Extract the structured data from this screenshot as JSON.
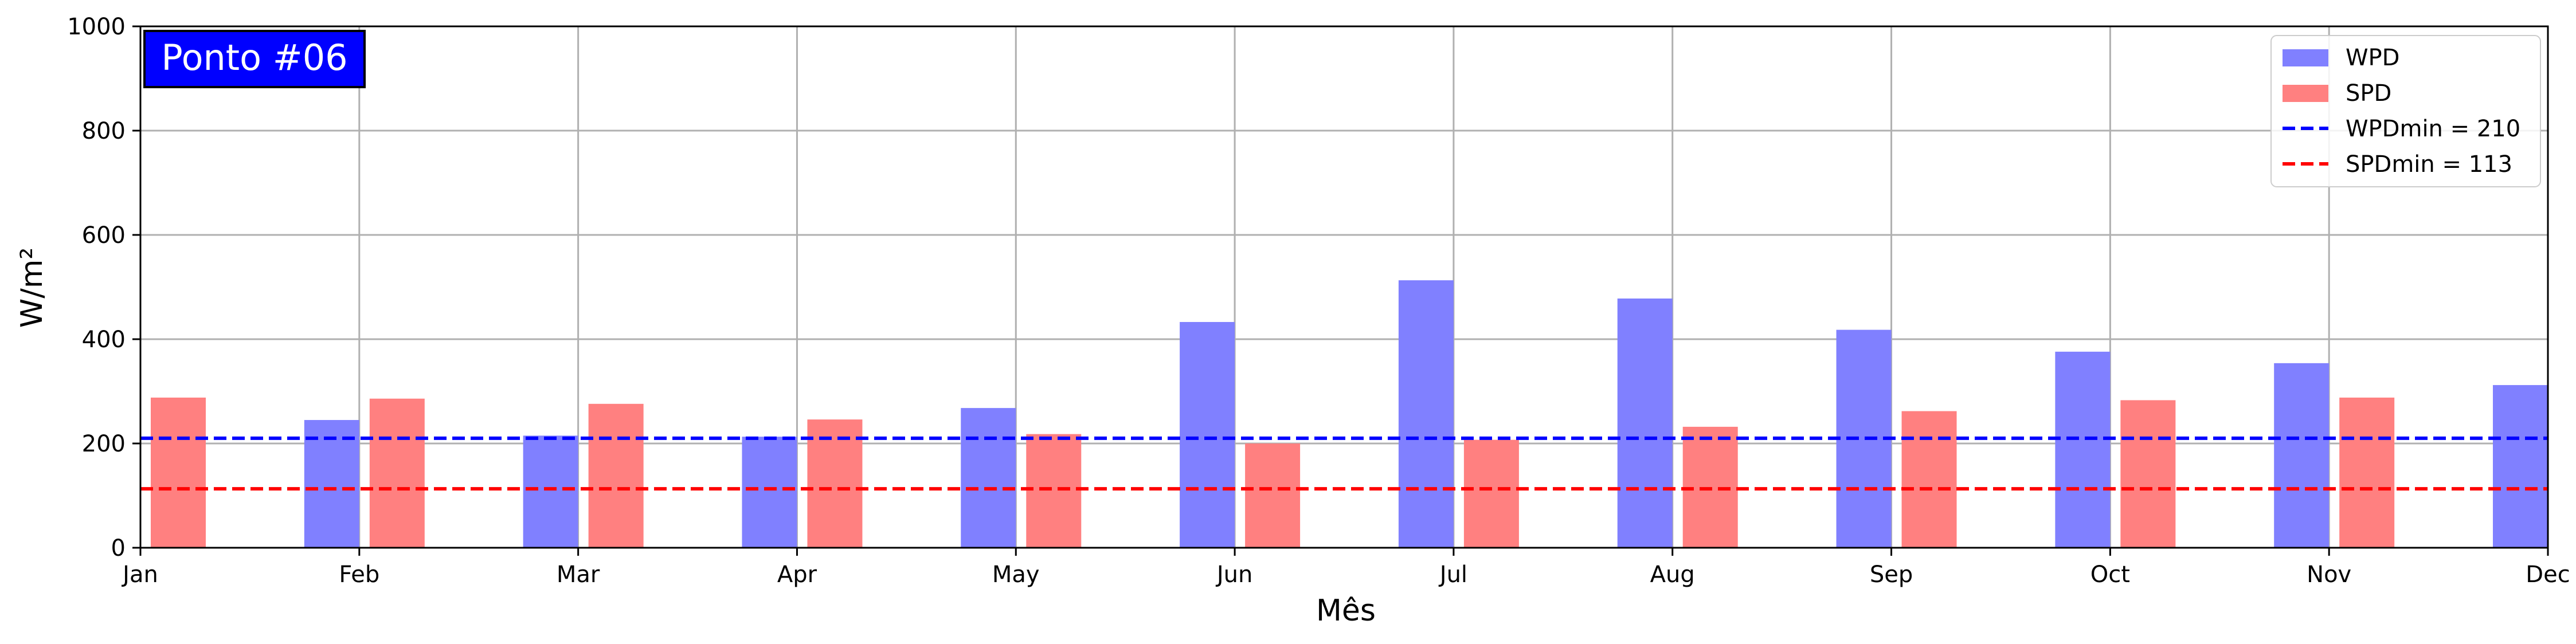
{
  "chart_data": {
    "type": "bar",
    "title_box": "Ponto #06",
    "xlabel": "Mês",
    "ylabel": "W/m²",
    "ylim": [
      0,
      1000
    ],
    "yticks": [
      0,
      200,
      400,
      600,
      800,
      1000
    ],
    "grid": true,
    "legend_position": "top-right",
    "categories": [
      "Jan",
      "Feb",
      "Mar",
      "Apr",
      "May",
      "Jun",
      "Jul",
      "Aug",
      "Sep",
      "Oct",
      "Nov",
      "Dec"
    ],
    "series": [
      {
        "name": "WPD",
        "color": "#8080ff",
        "values": [
          null,
          245,
          215,
          213,
          268,
          433,
          513,
          478,
          418,
          376,
          354,
          312
        ]
      },
      {
        "name": "SPD",
        "color": "#ff8080",
        "values": [
          288,
          286,
          276,
          246,
          218,
          200,
          207,
          232,
          262,
          283,
          288,
          null
        ]
      }
    ],
    "reference_lines": [
      {
        "name": "WPDmin = 210",
        "value": 210,
        "color": "#0000ff",
        "style": "dashed"
      },
      {
        "name": "SPDmin = 113",
        "value": 113,
        "color": "#ff0000",
        "style": "dashed"
      }
    ],
    "title_box_color": "#0000ff"
  }
}
